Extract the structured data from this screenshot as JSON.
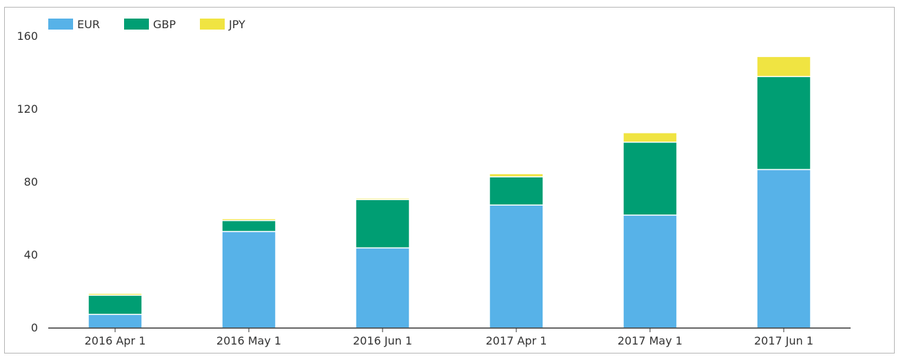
{
  "chart_data": {
    "type": "bar",
    "stacked": true,
    "categories": [
      "2016 Apr 1",
      "2016 May 1",
      "2016 Jun 1",
      "2017 Apr 1",
      "2017 May 1",
      "2017 Jun 1"
    ],
    "series": [
      {
        "name": "EUR",
        "color": "#57b2e8",
        "values": [
          7.5,
          53,
          44,
          67.5,
          62,
          87
        ]
      },
      {
        "name": "GBP",
        "color": "#009e73",
        "values": [
          10.5,
          6,
          26.5,
          15.5,
          40,
          51
        ]
      },
      {
        "name": "JPY",
        "color": "#f0e442",
        "values": [
          1,
          1,
          0.8,
          1.7,
          5.2,
          11
        ]
      }
    ],
    "yticks": [
      0,
      40,
      80,
      120,
      160
    ],
    "ylim": [
      0,
      160
    ],
    "title": "",
    "xlabel": "",
    "ylabel": "",
    "legend_position": "top-left",
    "grid": false
  }
}
